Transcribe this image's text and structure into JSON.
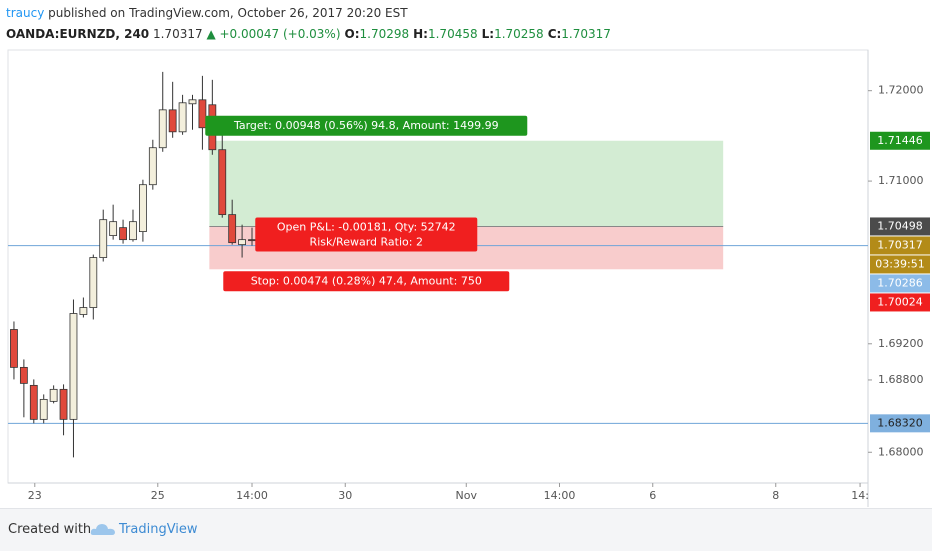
{
  "header": {
    "author": "traucy",
    "published": "published on TradingView.com, October 26, 2017 20:20 EST",
    "symbol": "OANDA:EURNZD, 240",
    "change": "▲ +0.00047 (+0.03%)",
    "ohlc_labels": [
      "O:",
      "H:",
      "L:",
      "C:"
    ]
  },
  "chart_data": {
    "type": "candlestick",
    "x": [
      0,
      1,
      2,
      3,
      4,
      5,
      6,
      7,
      8,
      9,
      10,
      11,
      12,
      13,
      14,
      15,
      16,
      17,
      18,
      19,
      20,
      21,
      22,
      23,
      24,
      25
    ],
    "open": [
      1.69358,
      1.68939,
      1.6874,
      1.68364,
      1.68563,
      1.68696,
      1.68364,
      1.69524,
      1.69601,
      1.70154,
      1.70397,
      1.70485,
      1.70352,
      1.70441,
      1.7096,
      1.71369,
      1.71788,
      1.71545,
      1.71855,
      1.71899,
      1.71844,
      1.71347,
      1.70629,
      1.70297,
      1.70352,
      1.70298
    ],
    "high": [
      1.69447,
      1.69027,
      1.68806,
      1.6864,
      1.6874,
      1.68751,
      1.6969,
      1.69712,
      1.70187,
      1.70684,
      1.70739,
      1.70573,
      1.70684,
      1.71015,
      1.71457,
      1.72208,
      1.72098,
      1.71954,
      1.71954,
      1.72164,
      1.7212,
      1.71512,
      1.70794,
      1.70518,
      1.70485,
      1.70458
    ],
    "low": [
      1.68806,
      1.68387,
      1.6832,
      1.6832,
      1.68541,
      1.68188,
      1.67944,
      1.69491,
      1.69469,
      1.7011,
      1.70352,
      1.70308,
      1.7033,
      1.7033,
      1.70905,
      1.71324,
      1.71479,
      1.71512,
      1.71568,
      1.71347,
      1.71291,
      1.70595,
      1.70297,
      1.70154,
      1.70286,
      1.70258
    ],
    "close": [
      1.68939,
      1.68762,
      1.68364,
      1.68585,
      1.68696,
      1.68364,
      1.69535,
      1.69601,
      1.70154,
      1.70573,
      1.70551,
      1.70352,
      1.70551,
      1.7096,
      1.71369,
      1.71788,
      1.71545,
      1.71866,
      1.71899,
      1.7159,
      1.71347,
      1.70629,
      1.70319,
      1.70352,
      1.70341,
      1.70317
    ],
    "up_color": "#f3efdc",
    "down_color": "#e0493c",
    "xlim": [
      -0.6,
      86.1
    ],
    "xticks": [
      {
        "value": 2.1,
        "label": "23"
      },
      {
        "value": 14.5,
        "label": "25"
      },
      {
        "value": 24,
        "label": "14:00"
      },
      {
        "value": 33.4,
        "label": "30"
      },
      {
        "value": 45.6,
        "label": "Nov"
      },
      {
        "value": 55,
        "label": "14:00"
      },
      {
        "value": 64.4,
        "label": "6"
      },
      {
        "value": 76.8,
        "label": "8"
      },
      {
        "value": 85.3,
        "label": "14:"
      }
    ],
    "ylim": [
      1.6766,
      1.7245
    ],
    "yticks": [
      {
        "value": 1.72,
        "label": "1.72000"
      },
      {
        "value": 1.71,
        "label": "1.71000"
      },
      {
        "value": 1.692,
        "label": "1.69200"
      },
      {
        "value": 1.688,
        "label": "1.68800"
      },
      {
        "value": 1.68,
        "label": "1.68000"
      }
    ],
    "hlines": [
      {
        "value": 1.70286
      },
      {
        "value": 1.6832,
        "label": "1.68320"
      }
    ],
    "countdown": "03:39:51",
    "position": {
      "entry": 1.70498,
      "target": 1.71446,
      "stop": 1.70024,
      "x": [
        19.7,
        71.5
      ],
      "target_text": "Target: 0.00948 (0.56%) 94.8, Amount: 1499.99",
      "pnl_text": "Open P&L: -0.00181, Qty: 52742",
      "ratio_text": "Risk/Reward Ratio: 2",
      "stop_text": "Stop: 0.00474 (0.28%) 47.4, Amount: 750"
    }
  }
}
